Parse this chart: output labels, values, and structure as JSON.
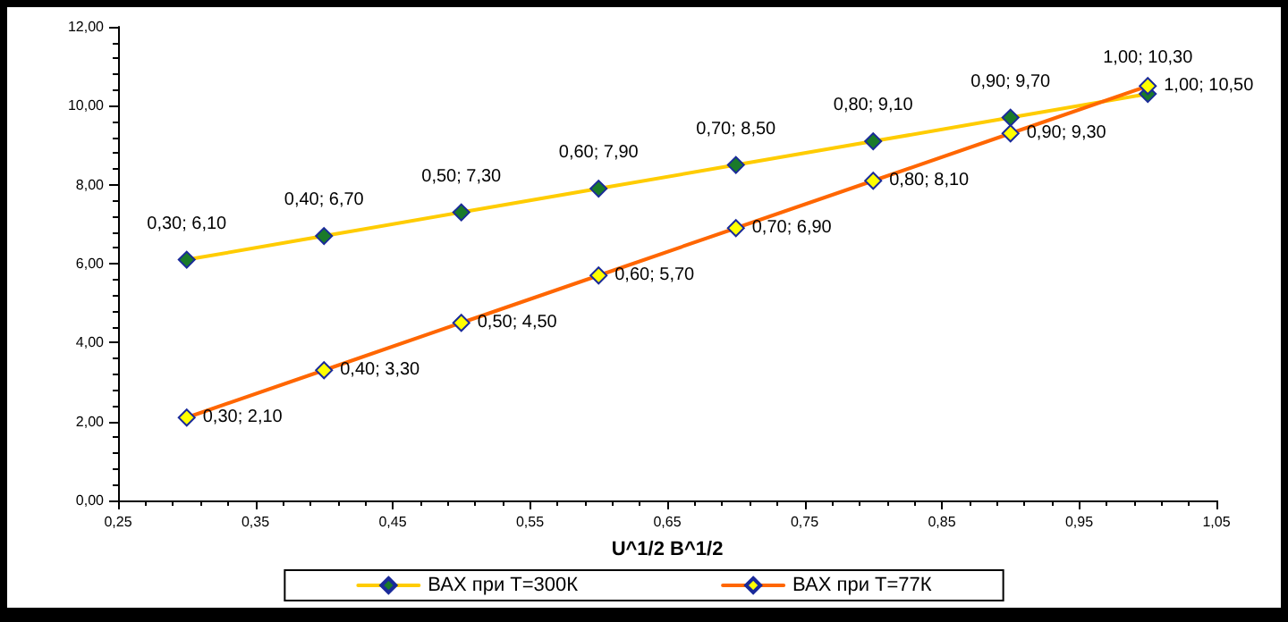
{
  "chart_data": {
    "type": "line",
    "xlabel": "U^1/2 B^1/2",
    "x": [
      0.3,
      0.4,
      0.5,
      0.6,
      0.7,
      0.8,
      0.9,
      1.0
    ],
    "series": [
      {
        "name": "ВАХ при Т=300К",
        "color": "#ffcc00",
        "values": [
          6.1,
          6.7,
          7.3,
          7.9,
          8.5,
          9.1,
          9.7,
          10.3
        ],
        "value_labels": [
          "0,30; 6,10",
          "0,40; 6,70",
          "0,50; 7,30",
          "0,60; 7,90",
          "0,70; 8,50",
          "0,80; 9,10",
          "0,90; 9,70",
          "1,00; 10,30"
        ]
      },
      {
        "name": "ВАХ при Т=77К",
        "color": "#ff6600",
        "values": [
          2.1,
          3.3,
          4.5,
          5.7,
          6.9,
          8.1,
          9.3,
          10.5
        ],
        "value_labels": [
          "0,30; 2,10",
          "0,40; 3,30",
          "0,50; 4,50",
          "0,60; 5,70",
          "0,70; 6,90",
          "0,80; 8,10",
          "0,90; 9,30",
          "1,00; 10,50"
        ]
      }
    ],
    "xlim": [
      0.25,
      1.05
    ],
    "xticks": [
      {
        "value": 0.25,
        "label": "0,25"
      },
      {
        "value": 0.35,
        "label": "0,35"
      },
      {
        "value": 0.45,
        "label": "0,45"
      },
      {
        "value": 0.55,
        "label": "0,55"
      },
      {
        "value": 0.65,
        "label": "0,65"
      },
      {
        "value": 0.75,
        "label": "0,75"
      },
      {
        "value": 0.85,
        "label": "0,85"
      },
      {
        "value": 0.95,
        "label": "0,95"
      },
      {
        "value": 1.05,
        "label": "1,05"
      }
    ],
    "ylim": [
      0,
      12
    ],
    "yticks": [
      {
        "value": 0,
        "label": "0,00"
      },
      {
        "value": 2,
        "label": "2,00"
      },
      {
        "value": 4,
        "label": "4,00"
      },
      {
        "value": 6,
        "label": "6,00"
      },
      {
        "value": 8,
        "label": "8,00"
      },
      {
        "value": 10,
        "label": "10,00"
      },
      {
        "value": 12,
        "label": "12,00"
      }
    ],
    "grid": false,
    "legend": "bottom",
    "marker": "diamond",
    "line_style": "solid"
  }
}
